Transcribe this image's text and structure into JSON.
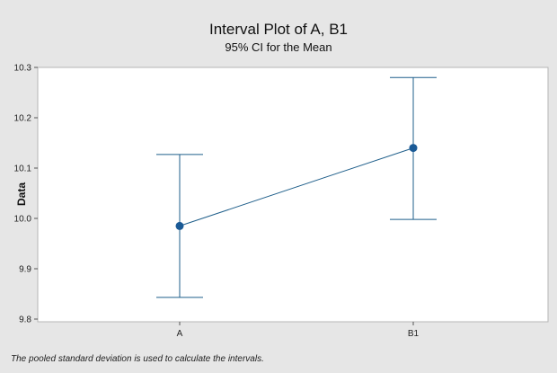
{
  "chart_data": {
    "type": "interval",
    "title": "Interval Plot of A, B1",
    "subtitle": "95% CI for the Mean",
    "xlabel": "",
    "ylabel": "Data",
    "categories": [
      "A",
      "B1"
    ],
    "means": [
      9.985,
      10.14
    ],
    "ci_lower": [
      9.843,
      9.998
    ],
    "ci_upper": [
      10.127,
      10.28
    ],
    "ylim": [
      9.8,
      10.3
    ],
    "yticks": [
      9.8,
      9.9,
      10.0,
      10.1,
      10.2,
      10.3
    ],
    "ytick_labels": [
      "9.8",
      "9.9",
      "10.0",
      "10.1",
      "10.2",
      "10.3"
    ],
    "grid": false,
    "footnote": "The pooled standard deviation is used to calculate the intervals.",
    "colors": {
      "series": "#1f5f8b",
      "marker": "#1a5a96",
      "background": "#e6e6e6",
      "plot_background": "#ffffff"
    }
  }
}
